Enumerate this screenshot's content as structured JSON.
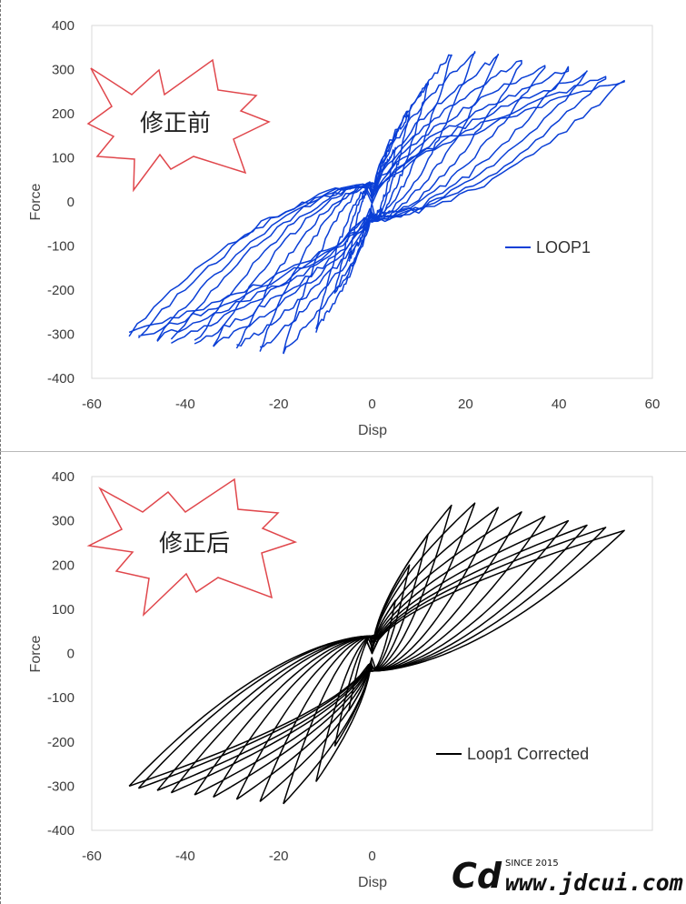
{
  "colors": {
    "loop_before": "#0a3fd6",
    "loop_after": "#000000",
    "burst_stroke": "#e0474c",
    "plot_border": "#d9d9d9"
  },
  "panels": [
    {
      "burst_label": "修正前",
      "legend_label": "LOOP1",
      "xlabel": "Disp",
      "ylabel": "Force"
    },
    {
      "burst_label": "修正后",
      "legend_label": "Loop1 Corrected",
      "xlabel": "Disp",
      "ylabel": "Force"
    }
  ],
  "watermark": {
    "logo": "Cd",
    "since": "SINCE 2015",
    "site": "www.jdcui.com"
  },
  "chart_data": [
    {
      "type": "line",
      "title": "",
      "xlabel": "Disp",
      "ylabel": "Force",
      "xlim": [
        -60,
        60
      ],
      "ylim": [
        -400,
        400
      ],
      "xticks": [
        -60,
        -40,
        -20,
        0,
        20,
        40,
        60
      ],
      "yticks": [
        -400,
        -300,
        -200,
        -100,
        0,
        100,
        200,
        300,
        400
      ],
      "grid": false,
      "legend_position": "right-middle",
      "series": [
        {
          "name": "LOOP1",
          "color": "#0a3fd6",
          "noisy": true,
          "cycles": [
            {
              "max_disp": 5,
              "max_force": 120,
              "min_disp": -5,
              "min_force": -130
            },
            {
              "max_disp": 8,
              "max_force": 200,
              "min_disp": -8,
              "min_force": -210
            },
            {
              "max_disp": 12,
              "max_force": 270,
              "min_disp": -12,
              "min_force": -290
            },
            {
              "max_disp": 17,
              "max_force": 335,
              "min_disp": -19,
              "min_force": -340
            },
            {
              "max_disp": 22,
              "max_force": 340,
              "min_disp": -24,
              "min_force": -335
            },
            {
              "max_disp": 27,
              "max_force": 330,
              "min_disp": -29,
              "min_force": -330
            },
            {
              "max_disp": 32,
              "max_force": 320,
              "min_disp": -34,
              "min_force": -325
            },
            {
              "max_disp": 37,
              "max_force": 310,
              "min_disp": -38,
              "min_force": -320
            },
            {
              "max_disp": 42,
              "max_force": 300,
              "min_disp": -43,
              "min_force": -315
            },
            {
              "max_disp": 46,
              "max_force": 290,
              "min_disp": -46,
              "min_force": -310
            },
            {
              "max_disp": 50,
              "max_force": 285,
              "min_disp": -50,
              "min_force": -305
            },
            {
              "max_disp": 54,
              "max_force": 278,
              "min_disp": -52,
              "min_force": -300
            }
          ]
        },
        {
          "name": "Loop1 Corrected",
          "color": "#000000",
          "noisy": false,
          "cycles": [
            {
              "max_disp": 5,
              "max_force": 120,
              "min_disp": -5,
              "min_force": -130
            },
            {
              "max_disp": 8,
              "max_force": 200,
              "min_disp": -8,
              "min_force": -210
            },
            {
              "max_disp": 12,
              "max_force": 270,
              "min_disp": -12,
              "min_force": -290
            },
            {
              "max_disp": 17,
              "max_force": 335,
              "min_disp": -19,
              "min_force": -340
            },
            {
              "max_disp": 22,
              "max_force": 340,
              "min_disp": -24,
              "min_force": -335
            },
            {
              "max_disp": 27,
              "max_force": 330,
              "min_disp": -29,
              "min_force": -330
            },
            {
              "max_disp": 32,
              "max_force": 320,
              "min_disp": -34,
              "min_force": -325
            },
            {
              "max_disp": 37,
              "max_force": 310,
              "min_disp": -38,
              "min_force": -320
            },
            {
              "max_disp": 42,
              "max_force": 300,
              "min_disp": -43,
              "min_force": -315
            },
            {
              "max_disp": 46,
              "max_force": 290,
              "min_disp": -46,
              "min_force": -310
            },
            {
              "max_disp": 50,
              "max_force": 285,
              "min_disp": -50,
              "min_force": -305
            },
            {
              "max_disp": 54,
              "max_force": 278,
              "min_disp": -52,
              "min_force": -300
            }
          ]
        }
      ]
    }
  ]
}
